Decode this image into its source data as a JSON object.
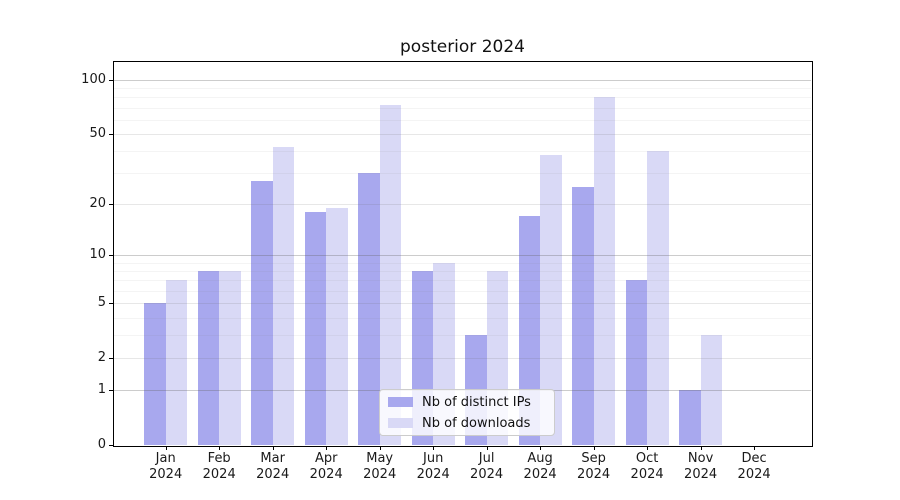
{
  "chart_data": {
    "type": "bar",
    "title": "posterior 2024",
    "x_tick_months": [
      "Jan",
      "Feb",
      "Mar",
      "Apr",
      "May",
      "Jun",
      "Jul",
      "Aug",
      "Sep",
      "Oct",
      "Nov",
      "Dec"
    ],
    "x_tick_year": "2024",
    "categories": [
      "Jan 2024",
      "Feb 2024",
      "Mar 2024",
      "Apr 2024",
      "May 2024",
      "Jun 2024",
      "Jul 2024",
      "Aug 2024",
      "Sep 2024",
      "Oct 2024",
      "Nov 2024",
      "Dec 2024"
    ],
    "series": [
      {
        "name": "Nb of distinct IPs",
        "color": "#a8a8ee",
        "values": [
          5,
          8,
          27,
          18,
          30,
          8,
          3,
          17,
          25,
          7,
          1,
          0
        ]
      },
      {
        "name": "Nb of downloads",
        "color": "#d9d9f6",
        "values": [
          7,
          8,
          42,
          19,
          72,
          9,
          8,
          38,
          80,
          40,
          3,
          0
        ]
      }
    ],
    "y_axis": {
      "scale": "log1p",
      "ylim": [
        0,
        127
      ],
      "tick_values": [
        0,
        1,
        2,
        5,
        10,
        20,
        50,
        100
      ],
      "tick_labels": [
        "0",
        "1",
        "2",
        "5",
        "10",
        "20",
        "50",
        "100"
      ],
      "major_gridlines": [
        1,
        10,
        100
      ],
      "labeled_minor_gridlines": [
        2,
        5,
        20,
        50
      ],
      "minor_gridlines": [
        3,
        4,
        6,
        7,
        8,
        9,
        30,
        40,
        60,
        70,
        80,
        90
      ]
    },
    "grid": true,
    "legend_position": "lower center"
  },
  "colors": {
    "background": "#ffffff",
    "spine": "#000000",
    "tick_text": "#1a1a1a",
    "legend_border": "#cccccc"
  }
}
